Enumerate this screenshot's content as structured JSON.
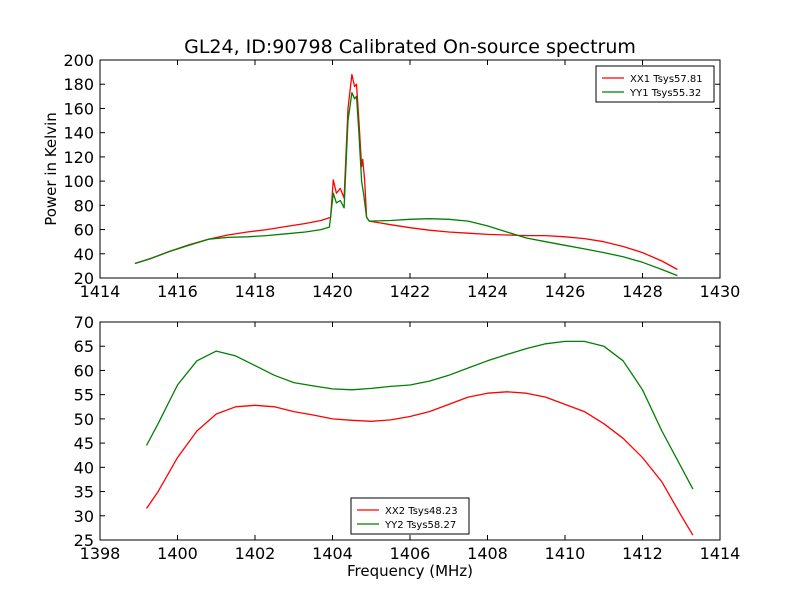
{
  "figure": {
    "title": "GL24, ID:90798 Calibrated On-source spectrum"
  },
  "chart_data": [
    {
      "type": "line",
      "title": "GL24, ID:90798 Calibrated On-source spectrum",
      "xlabel": "",
      "ylabel": "Power in Kelvin",
      "xlim": [
        1414,
        1430
      ],
      "ylim": [
        20,
        200
      ],
      "xticks": [
        1414,
        1416,
        1418,
        1420,
        1422,
        1424,
        1426,
        1428,
        1430
      ],
      "yticks": [
        20,
        40,
        60,
        80,
        100,
        120,
        140,
        160,
        180,
        200
      ],
      "grid": false,
      "legend_position": "top-right",
      "series": [
        {
          "name": "XX1 Tsys57.81",
          "color": "#ff0000",
          "points": [
            [
              1414.9,
              32
            ],
            [
              1415.3,
              36
            ],
            [
              1415.8,
              42
            ],
            [
              1416.3,
              47.5
            ],
            [
              1416.8,
              52
            ],
            [
              1417.3,
              55.5
            ],
            [
              1417.8,
              58
            ],
            [
              1418.3,
              60
            ],
            [
              1418.8,
              62.5
            ],
            [
              1419.3,
              65
            ],
            [
              1419.7,
              67.5
            ],
            [
              1419.95,
              70
            ],
            [
              1420.02,
              101
            ],
            [
              1420.1,
              90
            ],
            [
              1420.2,
              94
            ],
            [
              1420.3,
              86
            ],
            [
              1420.4,
              160
            ],
            [
              1420.5,
              188
            ],
            [
              1420.57,
              178
            ],
            [
              1420.62,
              180
            ],
            [
              1420.68,
              150
            ],
            [
              1420.75,
              112
            ],
            [
              1420.78,
              118
            ],
            [
              1420.83,
              100
            ],
            [
              1420.88,
              70
            ],
            [
              1420.95,
              67
            ],
            [
              1421.5,
              64
            ],
            [
              1422,
              61.5
            ],
            [
              1422.5,
              59.5
            ],
            [
              1423,
              58
            ],
            [
              1423.5,
              57
            ],
            [
              1424,
              56
            ],
            [
              1424.5,
              55.5
            ],
            [
              1425,
              55
            ],
            [
              1425.5,
              55
            ],
            [
              1426,
              54
            ],
            [
              1426.5,
              52.5
            ],
            [
              1427,
              50
            ],
            [
              1427.5,
              46
            ],
            [
              1428,
              41
            ],
            [
              1428.5,
              34
            ],
            [
              1428.9,
              27
            ]
          ]
        },
        {
          "name": "YY1 Tsys55.32",
          "color": "#008000",
          "points": [
            [
              1414.9,
              32
            ],
            [
              1415.3,
              36
            ],
            [
              1415.8,
              42
            ],
            [
              1416.3,
              47
            ],
            [
              1416.8,
              52
            ],
            [
              1417.3,
              53.5
            ],
            [
              1417.8,
              54
            ],
            [
              1418.3,
              55
            ],
            [
              1418.8,
              56.5
            ],
            [
              1419.3,
              58
            ],
            [
              1419.7,
              60
            ],
            [
              1419.92,
              62
            ],
            [
              1420.02,
              90
            ],
            [
              1420.1,
              82
            ],
            [
              1420.2,
              84
            ],
            [
              1420.3,
              78
            ],
            [
              1420.4,
              150
            ],
            [
              1420.5,
              173
            ],
            [
              1420.57,
              168
            ],
            [
              1420.62,
              170
            ],
            [
              1420.68,
              140
            ],
            [
              1420.75,
              100
            ],
            [
              1420.8,
              90
            ],
            [
              1420.88,
              70
            ],
            [
              1420.95,
              67
            ],
            [
              1421.5,
              67.5
            ],
            [
              1422,
              68.5
            ],
            [
              1422.5,
              69
            ],
            [
              1423,
              68.5
            ],
            [
              1423.5,
              67
            ],
            [
              1424,
              63
            ],
            [
              1424.5,
              58
            ],
            [
              1425,
              53
            ],
            [
              1425.5,
              50
            ],
            [
              1426,
              47
            ],
            [
              1426.5,
              44
            ],
            [
              1427,
              41
            ],
            [
              1427.5,
              37.5
            ],
            [
              1428,
              33
            ],
            [
              1428.5,
              27
            ],
            [
              1428.9,
              22
            ]
          ]
        }
      ]
    },
    {
      "type": "line",
      "title": "",
      "xlabel": "Frequency (MHz)",
      "ylabel": "",
      "xlim": [
        1398,
        1414
      ],
      "ylim": [
        25,
        70
      ],
      "xticks": [
        1398,
        1400,
        1402,
        1404,
        1406,
        1408,
        1410,
        1412,
        1414
      ],
      "yticks": [
        25,
        30,
        35,
        40,
        45,
        50,
        55,
        60,
        65,
        70
      ],
      "grid": false,
      "legend_position": "bottom-center",
      "series": [
        {
          "name": "XX2 Tsys48.23",
          "color": "#ff0000",
          "points": [
            [
              1399.2,
              31.5
            ],
            [
              1399.5,
              35
            ],
            [
              1400,
              42
            ],
            [
              1400.5,
              47.5
            ],
            [
              1401,
              51
            ],
            [
              1401.5,
              52.5
            ],
            [
              1402,
              52.8
            ],
            [
              1402.5,
              52.5
            ],
            [
              1403,
              51.5
            ],
            [
              1403.5,
              50.8
            ],
            [
              1404,
              50
            ],
            [
              1404.5,
              49.7
            ],
            [
              1405,
              49.5
            ],
            [
              1405.5,
              49.8
            ],
            [
              1406,
              50.5
            ],
            [
              1406.5,
              51.5
            ],
            [
              1407,
              53
            ],
            [
              1407.5,
              54.5
            ],
            [
              1408,
              55.3
            ],
            [
              1408.5,
              55.6
            ],
            [
              1409,
              55.3
            ],
            [
              1409.5,
              54.5
            ],
            [
              1410,
              53
            ],
            [
              1410.5,
              51.5
            ],
            [
              1411,
              49
            ],
            [
              1411.5,
              46
            ],
            [
              1412,
              42
            ],
            [
              1412.5,
              37
            ],
            [
              1413,
              30
            ],
            [
              1413.3,
              26
            ]
          ]
        },
        {
          "name": "YY2 Tsys58.27",
          "color": "#008000",
          "points": [
            [
              1399.2,
              44.5
            ],
            [
              1399.5,
              49
            ],
            [
              1400,
              57
            ],
            [
              1400.5,
              62
            ],
            [
              1401,
              64
            ],
            [
              1401.5,
              63
            ],
            [
              1402,
              61
            ],
            [
              1402.5,
              59
            ],
            [
              1403,
              57.5
            ],
            [
              1403.5,
              56.8
            ],
            [
              1404,
              56.2
            ],
            [
              1404.5,
              56
            ],
            [
              1405,
              56.3
            ],
            [
              1405.5,
              56.7
            ],
            [
              1406,
              57
            ],
            [
              1406.5,
              57.8
            ],
            [
              1407,
              59
            ],
            [
              1407.5,
              60.5
            ],
            [
              1408,
              62
            ],
            [
              1408.5,
              63.3
            ],
            [
              1409,
              64.5
            ],
            [
              1409.5,
              65.5
            ],
            [
              1410,
              66
            ],
            [
              1410.5,
              66
            ],
            [
              1411,
              65
            ],
            [
              1411.5,
              62
            ],
            [
              1412,
              56
            ],
            [
              1412.5,
              47.5
            ],
            [
              1413,
              40
            ],
            [
              1413.3,
              35.5
            ]
          ]
        }
      ]
    }
  ]
}
